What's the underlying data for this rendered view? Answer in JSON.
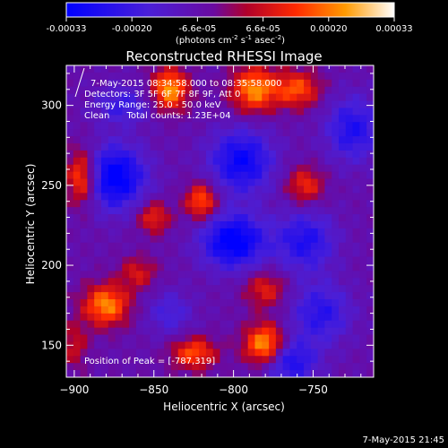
{
  "colorbar": {
    "ticks": [
      "-0.00033",
      "-0.00020",
      "-6.6e-05",
      "6.6e-05",
      "0.00020",
      "0.00033"
    ],
    "unit_main": "(photons cm",
    "unit_sup1": "-2",
    "unit_mid": " s",
    "unit_sup2": "-1",
    "unit_mid2": " asec",
    "unit_sup3": "-2",
    "unit_close": ")"
  },
  "annotation": {
    "time_range": "7-May-2015 08:34:58.000  to 08:35:58.000",
    "detectors": "Detectors: 3F 5F 6F 7F 8F 9F, Att 0",
    "energy": "Energy Range: 25.0 - 50.0 keV",
    "clean": "Clean      Total counts: 1.23E+04",
    "peak": "Position of Peak = [-787,319]"
  },
  "footer_timestamp": "7-May-2015 21:45",
  "chart_data": {
    "type": "heatmap",
    "title": "Reconstructed RHESSI Image",
    "xlabel": "Heliocentric X (arcsec)",
    "ylabel": "Heliocentric Y (arcsec)",
    "xlim": [
      -905,
      -712
    ],
    "ylim": [
      130,
      325
    ],
    "x_ticks": [
      -900,
      -850,
      -800,
      -750
    ],
    "y_ticks": [
      150,
      200,
      250,
      300
    ],
    "colormap": "IDL color table 3 / sunset (blue-purple-red-orange-yellow-white)",
    "value_range": [
      -0.00033,
      0.00033
    ],
    "peak_position": [
      -787,
      319
    ],
    "features": [
      {
        "x": -875,
        "y": 255,
        "amp": -0.0003,
        "sx": 14,
        "sy": 14
      },
      {
        "x": -795,
        "y": 265,
        "amp": -0.00025,
        "sx": 14,
        "sy": 14
      },
      {
        "x": -800,
        "y": 215,
        "amp": -0.0003,
        "sx": 14,
        "sy": 12
      },
      {
        "x": -755,
        "y": 215,
        "amp": -0.0002,
        "sx": 13,
        "sy": 13
      },
      {
        "x": -745,
        "y": 170,
        "amp": -0.00018,
        "sx": 13,
        "sy": 13
      },
      {
        "x": -765,
        "y": 140,
        "amp": -0.00022,
        "sx": 12,
        "sy": 10
      },
      {
        "x": -840,
        "y": 170,
        "amp": -0.00012,
        "sx": 10,
        "sy": 10
      },
      {
        "x": -725,
        "y": 285,
        "amp": -0.0002,
        "sx": 12,
        "sy": 14
      },
      {
        "x": -870,
        "y": 300,
        "amp": -0.00015,
        "sx": 12,
        "sy": 8
      },
      {
        "x": -840,
        "y": 310,
        "amp": 0.0003,
        "sx": 8,
        "sy": 9
      },
      {
        "x": -787,
        "y": 310,
        "amp": 0.00028,
        "sx": 10,
        "sy": 10
      },
      {
        "x": -780,
        "y": 150,
        "amp": 0.00033,
        "sx": 9,
        "sy": 9
      },
      {
        "x": -760,
        "y": 310,
        "amp": 0.00022,
        "sx": 10,
        "sy": 8
      },
      {
        "x": -820,
        "y": 240,
        "amp": 0.00024,
        "sx": 7,
        "sy": 8
      },
      {
        "x": -850,
        "y": 230,
        "amp": 0.00018,
        "sx": 7,
        "sy": 7
      },
      {
        "x": -895,
        "y": 255,
        "amp": 0.00028,
        "sx": 7,
        "sy": 12
      },
      {
        "x": -755,
        "y": 250,
        "amp": 0.00018,
        "sx": 8,
        "sy": 8
      },
      {
        "x": -880,
        "y": 175,
        "amp": 0.00028,
        "sx": 10,
        "sy": 9
      },
      {
        "x": -825,
        "y": 145,
        "amp": 0.00022,
        "sx": 10,
        "sy": 7
      },
      {
        "x": -780,
        "y": 185,
        "amp": 0.00016,
        "sx": 9,
        "sy": 8
      },
      {
        "x": -860,
        "y": 195,
        "amp": 0.00014,
        "sx": 8,
        "sy": 7
      },
      {
        "x": -900,
        "y": 150,
        "amp": 0.00012,
        "sx": 6,
        "sy": 10
      }
    ]
  }
}
